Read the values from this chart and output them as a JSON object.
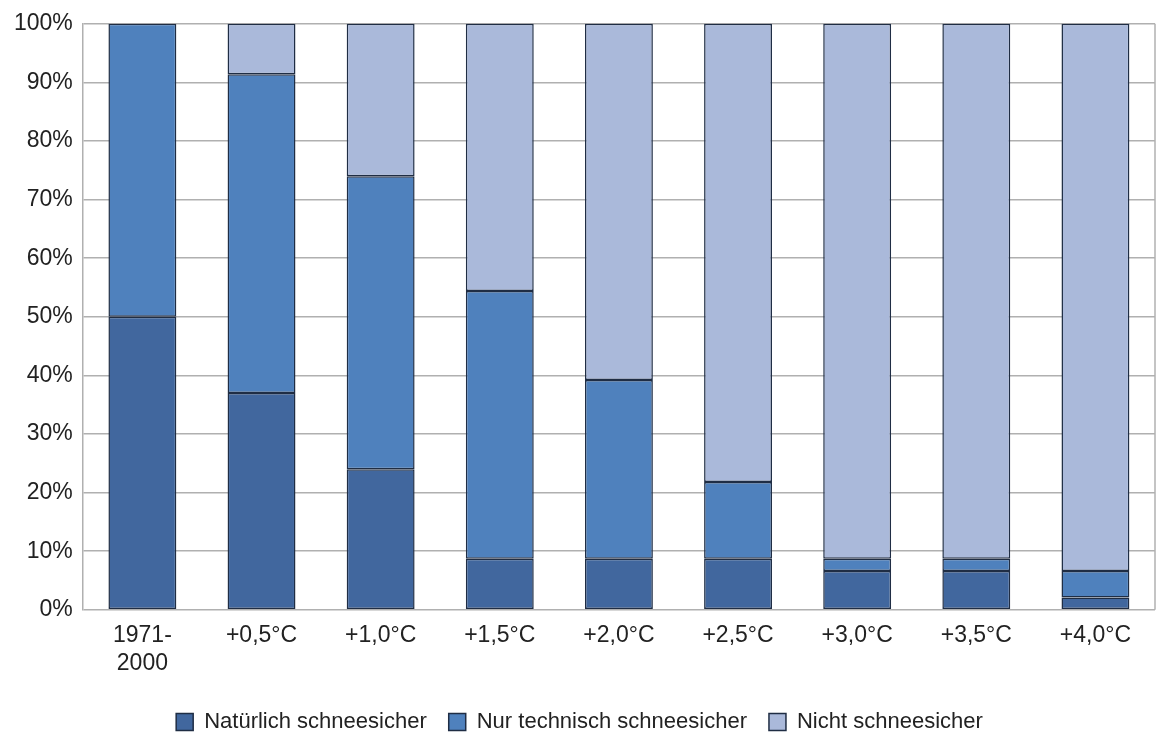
{
  "chart_data": {
    "type": "bar",
    "stacked": true,
    "categories": [
      "1971-\n2000",
      "+0,5°C",
      "+1,0°C",
      "+1,5°C",
      "+2,0°C",
      "+2,5°C",
      "+3,0°C",
      "+3,5°C",
      "+4,0°C"
    ],
    "series": [
      {
        "name": "Natürlich schneesicher",
        "color": "#41679e",
        "values": [
          50,
          37,
          24,
          8.7,
          8.7,
          8.7,
          6.6,
          6.6,
          2.1
        ]
      },
      {
        "name": "Nur technisch schneesicher",
        "color": "#4f81bd",
        "values": [
          50,
          54.4,
          50,
          45.7,
          30.5,
          13.1,
          2.1,
          2.1,
          4.5
        ]
      },
      {
        "name": "Nicht schneesicher",
        "color": "#aab9da",
        "values": [
          0,
          8.6,
          26,
          45.6,
          60.8,
          78.2,
          91.3,
          91.3,
          93.4
        ]
      }
    ],
    "ylim": [
      0,
      100
    ],
    "yticks": [
      {
        "value": 0,
        "label": "0%"
      },
      {
        "value": 10,
        "label": "10%"
      },
      {
        "value": 20,
        "label": "20%"
      },
      {
        "value": 30,
        "label": "30%"
      },
      {
        "value": 40,
        "label": "40%"
      },
      {
        "value": 50,
        "label": "50%"
      },
      {
        "value": 60,
        "label": "60%"
      },
      {
        "value": 70,
        "label": "70%"
      },
      {
        "value": 80,
        "label": "80%"
      },
      {
        "value": 90,
        "label": "90%"
      },
      {
        "value": 100,
        "label": "100%"
      }
    ],
    "grid": "y",
    "legend": "bottom"
  }
}
